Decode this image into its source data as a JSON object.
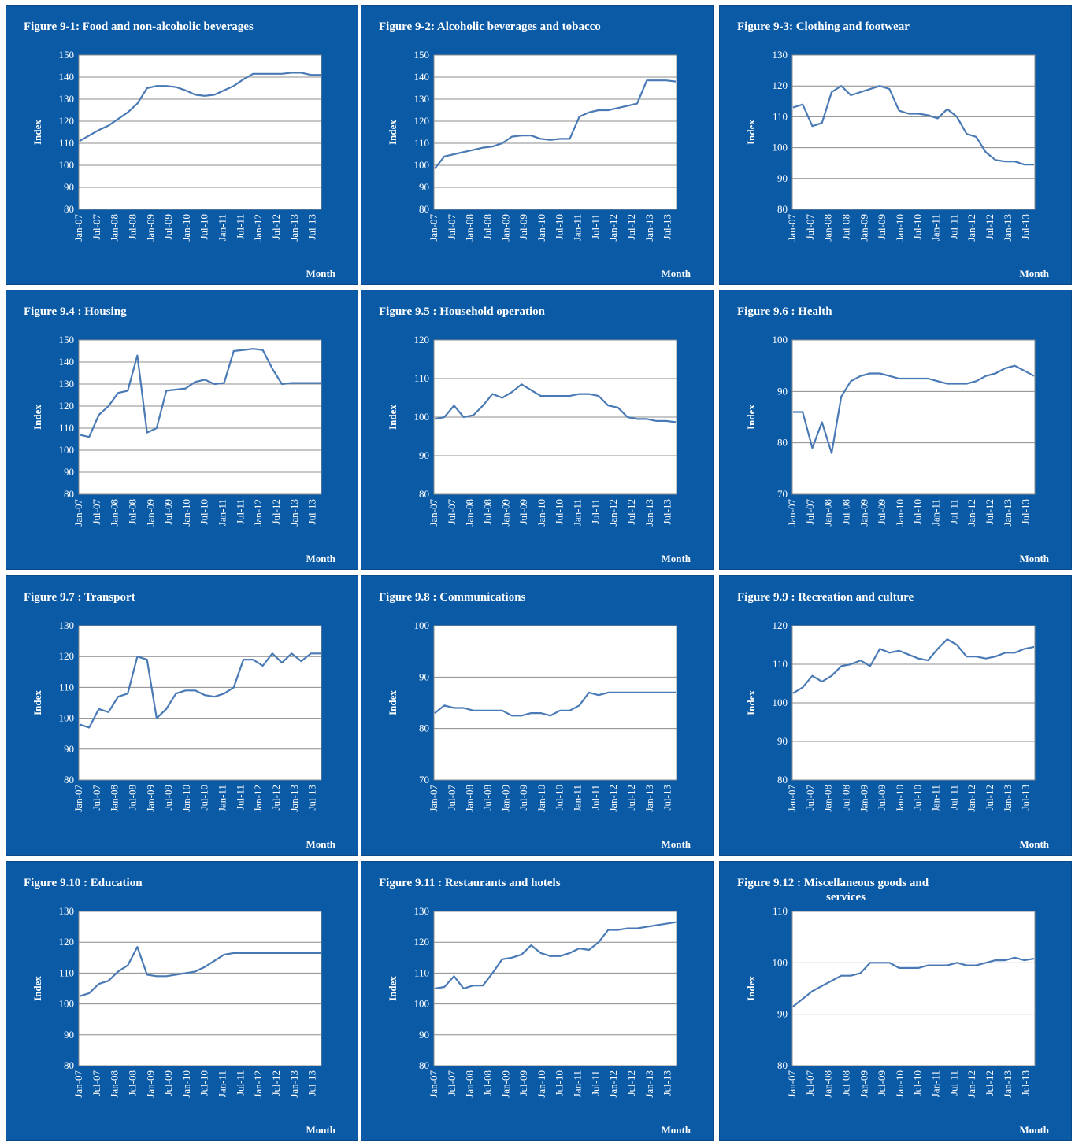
{
  "x_ticks": [
    "Jan-07",
    "Jul-07",
    "Jan-08",
    "Jul-08",
    "Jan-09",
    "Jul-09",
    "Jan-10",
    "Jul-10",
    "Jan-11",
    "Jul-11",
    "Jan-12",
    "Jul-12",
    "Jan-13",
    "Jul-13"
  ],
  "colors": {
    "panel_bg": "#0a5aa6",
    "plot_bg": "#ffffff",
    "line": "#4a7ab5",
    "grid": "#8c8c8c"
  },
  "chart_data": [
    {
      "type": "line",
      "title": "Figure 9-1: Food and non-alcoholic beverages",
      "xlabel": "Month",
      "ylabel": "Index",
      "ylim": [
        80,
        150
      ],
      "yticks": [
        80,
        90,
        100,
        110,
        120,
        130,
        140,
        150
      ],
      "x_start": "Jan-07",
      "x_step": "quarter",
      "series": [
        {
          "values": [
            111,
            113.5,
            116,
            118,
            121,
            124,
            128,
            135,
            136,
            136,
            135.5,
            134,
            132,
            131.5,
            132,
            134,
            136,
            139,
            141.5,
            141.5,
            141.5,
            141.5,
            142,
            142,
            141,
            141
          ]
        }
      ]
    },
    {
      "type": "line",
      "title": "Figure 9-2: Alcoholic beverages and tobacco",
      "xlabel": "Month",
      "ylabel": "Index",
      "ylim": [
        80,
        150
      ],
      "yticks": [
        80,
        90,
        100,
        110,
        120,
        130,
        140,
        150
      ],
      "x_start": "Jan-07",
      "x_step": "quarter",
      "series": [
        {
          "values": [
            98.5,
            104,
            105,
            106,
            107,
            108,
            108.5,
            110,
            113,
            113.5,
            113.5,
            112,
            111.5,
            112,
            112,
            122,
            124,
            125,
            125,
            126,
            127,
            128,
            138.5,
            138.5,
            138.5,
            138
          ]
        }
      ]
    },
    {
      "type": "line",
      "title": "Figure 9-3: Clothing and footwear",
      "xlabel": "Month",
      "ylabel": "Index",
      "ylim": [
        80,
        130
      ],
      "yticks": [
        80,
        90,
        100,
        110,
        120,
        130
      ],
      "x_start": "Jan-07",
      "x_step": "quarter",
      "series": [
        {
          "values": [
            113,
            114,
            107,
            108,
            118,
            120,
            117,
            118,
            119,
            120,
            119,
            112,
            111,
            111,
            110.5,
            109.5,
            112.5,
            110,
            104.5,
            103.5,
            98.5,
            96,
            95.5,
            95.5,
            94.5,
            94.5
          ]
        }
      ]
    },
    {
      "type": "line",
      "title": "Figure 9.4 : Housing",
      "xlabel": "Month",
      "ylabel": "Index",
      "ylim": [
        80,
        150
      ],
      "yticks": [
        80,
        90,
        100,
        110,
        120,
        130,
        140,
        150
      ],
      "x_start": "Jan-07",
      "x_step": "quarter",
      "series": [
        {
          "values": [
            107,
            106,
            116,
            120,
            126,
            127,
            143,
            108,
            110,
            127,
            127.5,
            128,
            131,
            132,
            130,
            130.5,
            145,
            145.5,
            146,
            145.5,
            137,
            130,
            130.5,
            130.5,
            130.5,
            130.5
          ]
        }
      ]
    },
    {
      "type": "line",
      "title": "Figure 9.5 : Household operation",
      "xlabel": "Month",
      "ylabel": "Index",
      "ylim": [
        80,
        120
      ],
      "yticks": [
        80,
        90,
        100,
        110,
        120
      ],
      "x_start": "Jan-07",
      "x_step": "quarter",
      "series": [
        {
          "values": [
            99.5,
            100,
            103,
            100,
            100.5,
            103,
            106,
            105,
            106.5,
            108.5,
            107,
            105.5,
            105.5,
            105.5,
            105.5,
            106,
            106,
            105.5,
            103,
            102.5,
            100,
            99.5,
            99.5,
            99,
            99,
            98.7
          ]
        }
      ]
    },
    {
      "type": "line",
      "title": "Figure 9.6 : Health",
      "xlabel": "Month",
      "ylabel": "Index",
      "ylim": [
        70,
        100
      ],
      "yticks": [
        70,
        80,
        90,
        100
      ],
      "x_start": "Jan-07",
      "x_step": "quarter",
      "series": [
        {
          "values": [
            86,
            86,
            79,
            84,
            78,
            89,
            92,
            93,
            93.5,
            93.5,
            93,
            92.5,
            92.5,
            92.5,
            92.5,
            92,
            91.5,
            91.5,
            91.5,
            92,
            93,
            93.5,
            94.5,
            95,
            94,
            93
          ]
        }
      ]
    },
    {
      "type": "line",
      "title": "Figure 9.7 : Transport",
      "xlabel": "Month",
      "ylabel": "Index",
      "ylim": [
        80,
        130
      ],
      "yticks": [
        80,
        90,
        100,
        110,
        120,
        130
      ],
      "x_start": "Jan-07",
      "x_step": "quarter",
      "series": [
        {
          "values": [
            98,
            97,
            103,
            102,
            107,
            108,
            120,
            119,
            100,
            103,
            108,
            109,
            109,
            107.5,
            107,
            108,
            110,
            119,
            119,
            117,
            121,
            118,
            121,
            118.5,
            121,
            121
          ]
        }
      ]
    },
    {
      "type": "line",
      "title": "Figure 9.8 : Communications",
      "xlabel": "Month",
      "ylabel": "Index",
      "ylim": [
        70,
        100
      ],
      "yticks": [
        70,
        80,
        90,
        100
      ],
      "x_start": "Jan-07",
      "x_step": "quarter",
      "series": [
        {
          "values": [
            83,
            84.5,
            84,
            84,
            83.5,
            83.5,
            83.5,
            83.5,
            82.5,
            82.5,
            83,
            83,
            82.5,
            83.5,
            83.5,
            84.5,
            87,
            86.5,
            87,
            87,
            87,
            87,
            87,
            87,
            87,
            87
          ]
        }
      ]
    },
    {
      "type": "line",
      "title": "Figure 9.9 : Recreation and culture",
      "xlabel": "Month",
      "ylabel": "Index",
      "ylim": [
        80,
        120
      ],
      "yticks": [
        80,
        90,
        100,
        110,
        120
      ],
      "x_start": "Jan-07",
      "x_step": "quarter",
      "series": [
        {
          "values": [
            102.5,
            104,
            107,
            105.5,
            107,
            109.5,
            110,
            111,
            109.5,
            114,
            113,
            113.5,
            112.5,
            111.5,
            111,
            114,
            116.5,
            115,
            112,
            112,
            111.5,
            112,
            113,
            113,
            114,
            114.5
          ]
        }
      ]
    },
    {
      "type": "line",
      "title": "Figure 9.10 : Education",
      "xlabel": "Month",
      "ylabel": "Index",
      "ylim": [
        80,
        130
      ],
      "yticks": [
        80,
        90,
        100,
        110,
        120,
        130
      ],
      "x_start": "Jan-07",
      "x_step": "quarter",
      "series": [
        {
          "values": [
            102.5,
            103.5,
            106.5,
            107.5,
            110.5,
            112.5,
            118.5,
            109.5,
            109,
            109,
            109.5,
            110,
            110.5,
            112,
            114,
            116,
            116.5,
            116.5,
            116.5,
            116.5,
            116.5,
            116.5,
            116.5,
            116.5,
            116.5,
            116.5
          ]
        }
      ]
    },
    {
      "type": "line",
      "title": "Figure 9.11 : Restaurants and hotels",
      "xlabel": "Month",
      "ylabel": "Index",
      "ylim": [
        80,
        130
      ],
      "yticks": [
        80,
        90,
        100,
        110,
        120,
        130
      ],
      "x_start": "Jan-07",
      "x_step": "quarter",
      "series": [
        {
          "values": [
            105,
            105.5,
            109,
            105,
            106,
            106,
            110,
            114.5,
            115,
            116,
            119,
            116.5,
            115.5,
            115.5,
            116.5,
            118,
            117.5,
            120,
            124,
            124,
            124.5,
            124.5,
            125,
            125.5,
            126,
            126.5
          ]
        }
      ]
    },
    {
      "type": "line",
      "title": "Figure 9.12 : Miscellaneous goods and",
      "title_line2": "services",
      "xlabel": "Month",
      "ylabel": "Index",
      "ylim": [
        80,
        110
      ],
      "yticks": [
        80,
        90,
        100,
        110
      ],
      "x_start": "Jan-07",
      "x_step": "quarter",
      "series": [
        {
          "values": [
            91.5,
            93,
            94.5,
            95.5,
            96.5,
            97.5,
            97.5,
            98,
            100,
            100,
            100,
            99,
            99,
            99,
            99.5,
            99.5,
            99.5,
            100,
            99.5,
            99.5,
            100,
            100.5,
            100.5,
            101,
            100.5,
            100.8
          ]
        }
      ]
    }
  ]
}
